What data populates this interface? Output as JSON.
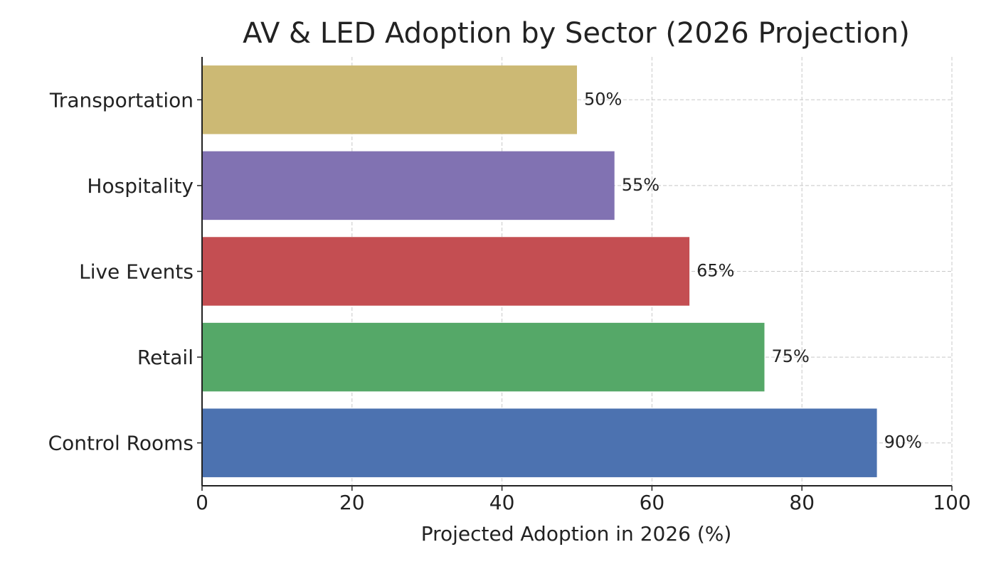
{
  "chart_data": {
    "type": "barh",
    "title": "AV & LED Adoption by Sector (2026 Projection)",
    "x_label": "Projected Adoption in 2026 (%)",
    "categories": [
      "Control Rooms",
      "Retail",
      "Live Events",
      "Hospitality",
      "Transportation"
    ],
    "values": [
      90,
      75,
      65,
      55,
      50
    ],
    "value_labels": [
      "90%",
      "75%",
      "65%",
      "55%",
      "50%"
    ],
    "colors": [
      "#4c72b0",
      "#55a868",
      "#c44e52",
      "#8172b2",
      "#ccb974"
    ],
    "xlim": [
      0,
      100
    ],
    "xticks": [
      0,
      20,
      40,
      60,
      80,
      100
    ],
    "grid": true
  }
}
